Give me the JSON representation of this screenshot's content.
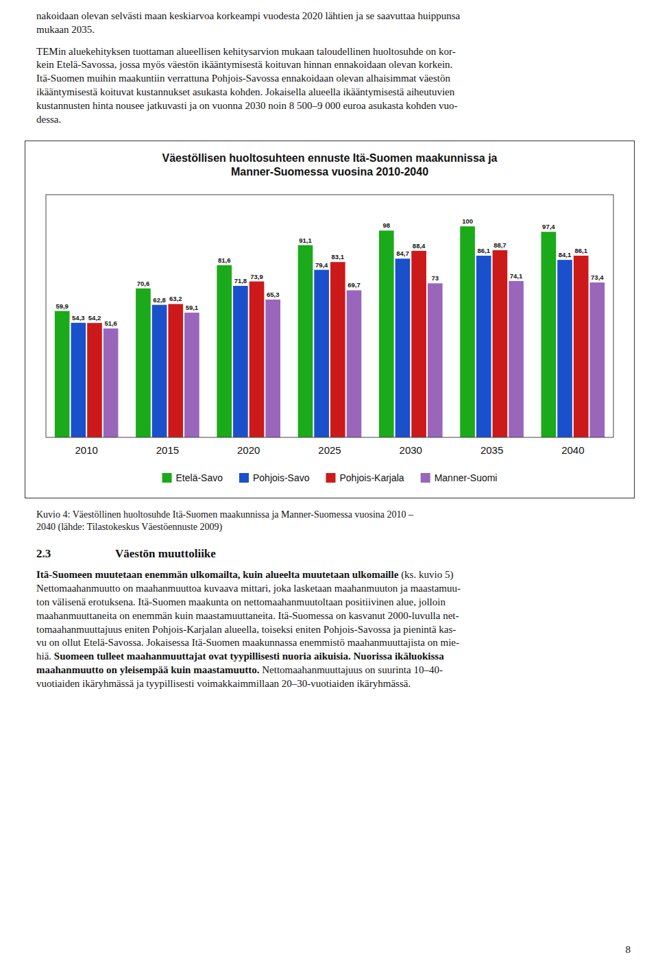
{
  "chart_data": {
    "type": "bar",
    "title": "Väestöllisen huoltosuhteen ennuste  Itä-Suomen maakunnissa ja\nManner-Suomessa vuosina 2010-2040",
    "categories": [
      "2010",
      "2015",
      "2020",
      "2025",
      "2030",
      "2035",
      "2040"
    ],
    "series": [
      {
        "name": "Etelä-Savo",
        "color": "#1aaa1a",
        "values": [
          59.9,
          70.6,
          81.6,
          91.1,
          98.0,
          100.0,
          97.4
        ],
        "value_labels": [
          "59,9",
          "70,6",
          "81,6",
          "91,1",
          "98",
          "100",
          "97,4"
        ]
      },
      {
        "name": "Pohjois-Savo",
        "color": "#1a50cc",
        "values": [
          54.3,
          62.8,
          71.8,
          79.4,
          84.7,
          86.1,
          84.1
        ],
        "value_labels": [
          "54,3",
          "62,8",
          "71,8",
          "79,4",
          "84,7",
          "86,1",
          "84,1"
        ]
      },
      {
        "name": "Pohjois-Karjala",
        "color": "#cc1a1a",
        "values": [
          54.2,
          63.2,
          73.9,
          83.1,
          88.4,
          88.7,
          86.1
        ],
        "value_labels": [
          "54,2",
          "63,2",
          "73,9",
          "83,1",
          "88,4",
          "88,7",
          "86,1"
        ]
      },
      {
        "name": "Manner-Suomi",
        "color": "#9966bb",
        "values": [
          51.6,
          59.1,
          65.3,
          69.7,
          73.0,
          74.1,
          73.4
        ],
        "value_labels": [
          "51,6",
          "59,1",
          "65,3",
          "69,7",
          "73",
          "74,1",
          "73,4"
        ]
      }
    ],
    "ylim": [
      0,
      115
    ],
    "grid": false,
    "legend": "bottom",
    "data_labels": true,
    "tick_labels": "x"
  },
  "page": {
    "paragraphs": [
      "nakoidaan olevan selvästi maan keskiarvoa korkeampi vuodesta 2020 lähtien ja se saavuttaa huippunsa\nmukaan 2035.",
      "TEMin aluekehityksen tuottaman alueellisen kehitysarvion mukaan taloudellinen huoltosuhde on kor-\nkein Etelä-Savossa, jossa myös väestön ikääntymisestä koituvan hinnan ennakoidaan olevan korkein.\nItä-Suomen muihin maakuntiin verrattuna Pohjois-Savossa ennakoidaan olevan alhaisimmat väestön\nikääntymisestä koituvat kustannukset asukasta kohden. Jokaisella alueella ikääntymisestä aiheutuvien\nkustannusten hinta nousee jatkuvasti ja on vuonna 2030 noin 8 500–9 000 euroa asukasta kohden vuo-\ndessa."
    ],
    "caption": "Kuvio 4: Väestöllinen huoltosuhde Itä-Suomen maakunnissa ja Manner-Suomessa vuosina 2010 –\n2040 (lähde: Tilastokeskus Väestöennuste 2009)",
    "section_number": "2.3",
    "section_title": "Väestön muuttoliike",
    "section_body": [
      "Itä-Suomeen muutetaan enemmän ulkomailta, kuin alueelta muutetaan ulkomaille",
      " (ks. kuvio 5)\nNettomaahanmuutto on maahanmuuttoa kuvaava mittari, joka lasketaan maahanmuuton ja maastamuu-\nton välisenä erotuksena. Itä-Suomen maakunta on nettomaahanmuutoltaan positiivinen alue, jolloin\nmaahanmuuttaneita on enemmän kuin maastamuuttaneita. Itä-Suomessa on kasvanut 2000-luvulla net-\ntomaahanmuuttajuus eniten Pohjois-Karjalan alueella, toiseksi eniten Pohjois-Savossa ja pienintä kas-\nvu on ollut Etelä-Savossa. Jokaisessa Itä-Suomen maakunnassa enemmistö maahanmuuttajista on mie-\nhiä. ",
      "Suomeen tulleet maahanmuuttajat ovat tyypillisesti nuoria aikuisia. Nuorissa ikäluokissa\nmaahanmuutto on yleisempää kuin maastamuutto.",
      " Nettomaahanmuuttajuus on suurinta 10–40-\nvuotiaiden ikäryhmässä ja tyypillisesti voimakkaimmillaan 20–30-vuotiaiden ikäryhmässä."
    ],
    "page_number": "8"
  }
}
